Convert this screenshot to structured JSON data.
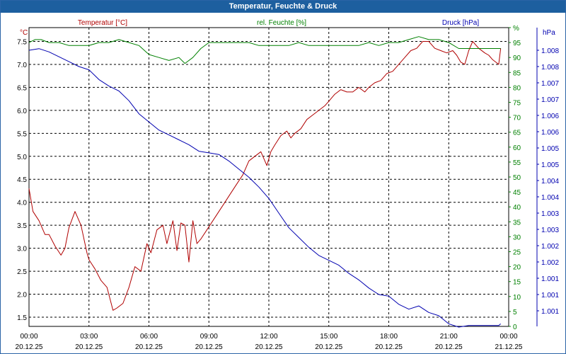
{
  "chart_data": {
    "type": "line",
    "title": "Temperatur, Feuchte & Druck",
    "x_tick_labels": [
      {
        "time": "00:00",
        "date": "20.12.25"
      },
      {
        "time": "03:00",
        "date": "20.12.25"
      },
      {
        "time": "06:00",
        "date": "20.12.25"
      },
      {
        "time": "09:00",
        "date": "20.12.25"
      },
      {
        "time": "12:00",
        "date": "20.12.25"
      },
      {
        "time": "15:00",
        "date": "20.12.25"
      },
      {
        "time": "18:00",
        "date": "20.12.25"
      },
      {
        "time": "21:00",
        "date": "20.12.25"
      },
      {
        "time": "00:00",
        "date": "21.12.25"
      }
    ],
    "xlim_hours": [
      0,
      24
    ],
    "axes": {
      "temperature": {
        "unit_label": "°C",
        "series_label": "Temperatur [°C]",
        "ylim": [
          1.3,
          7.8
        ],
        "ticks": [
          "1.5",
          "2.0",
          "2.5",
          "3.0",
          "3.5",
          "4.0",
          "4.5",
          "5.0",
          "5.5",
          "6.0",
          "6.5",
          "7.0",
          "7.5"
        ],
        "color": "#b00000"
      },
      "humidity": {
        "unit_label": "%",
        "series_label": "rel. Feuchte [%]",
        "ylim": [
          0,
          100
        ],
        "ticks": [
          "0",
          "5",
          "10",
          "15",
          "20",
          "25",
          "30",
          "35",
          "40",
          "45",
          "50",
          "55",
          "60",
          "65",
          "70",
          "75",
          "80",
          "85",
          "90",
          "95",
          "%"
        ],
        "color": "#008000"
      },
      "pressure": {
        "unit_label": "hPa",
        "series_label": "Druck [hPa]",
        "ticks": [
          "1.001",
          "1.001",
          "1.001",
          "1.002",
          "1.002",
          "1.003",
          "1.003",
          "1.004",
          "1.004",
          "1.005",
          "1.005",
          "1.006",
          "1.006",
          "1.007",
          "1.007",
          "1.008",
          "1.008"
        ],
        "color": "#0000b0",
        "note": "values expressed in tick index units (0 = bottom tick, 16 = top tick)"
      }
    },
    "series": [
      {
        "name": "Temperatur [°C]",
        "axis": "temperature",
        "color": "#b00000",
        "x": [
          0,
          0.2,
          0.5,
          0.8,
          1.0,
          1.3,
          1.6,
          1.8,
          2.0,
          2.3,
          2.6,
          2.9,
          3.0,
          3.3,
          3.6,
          3.9,
          4.2,
          4.4,
          4.7,
          5.0,
          5.3,
          5.6,
          5.9,
          6.1,
          6.4,
          6.7,
          6.9,
          7.2,
          7.4,
          7.6,
          7.8,
          8.0,
          8.2,
          8.4,
          8.6,
          8.9,
          9.2,
          9.5,
          9.8,
          10.1,
          10.4,
          10.7,
          11.0,
          11.3,
          11.6,
          11.9,
          12.1,
          12.3,
          12.6,
          12.9,
          13.1,
          13.3,
          13.6,
          13.9,
          14.2,
          14.5,
          14.8,
          15.0,
          15.3,
          15.6,
          15.9,
          16.2,
          16.5,
          16.8,
          17.0,
          17.3,
          17.6,
          17.9,
          18.2,
          18.5,
          18.8,
          19.1,
          19.4,
          19.7,
          20.0,
          20.3,
          20.6,
          20.9,
          21.2,
          21.4,
          21.6,
          21.8,
          22.0,
          22.2,
          22.5,
          22.8,
          23.0,
          23.2,
          23.5,
          23.6
        ],
        "values": [
          4.3,
          3.8,
          3.6,
          3.3,
          3.3,
          3.05,
          2.85,
          3.0,
          3.45,
          3.8,
          3.5,
          2.9,
          2.75,
          2.55,
          2.3,
          2.15,
          1.65,
          1.7,
          1.8,
          2.15,
          2.6,
          2.5,
          3.1,
          2.9,
          3.4,
          3.5,
          3.1,
          3.6,
          2.95,
          3.55,
          3.5,
          2.7,
          3.6,
          3.1,
          3.2,
          3.4,
          3.6,
          3.8,
          4.0,
          4.2,
          4.4,
          4.6,
          4.9,
          5.0,
          5.1,
          4.8,
          5.1,
          5.25,
          5.45,
          5.55,
          5.4,
          5.5,
          5.6,
          5.8,
          5.9,
          6.0,
          6.1,
          6.2,
          6.35,
          6.45,
          6.4,
          6.4,
          6.5,
          6.4,
          6.5,
          6.6,
          6.65,
          6.8,
          6.85,
          7.0,
          7.15,
          7.3,
          7.35,
          7.5,
          7.5,
          7.35,
          7.3,
          7.25,
          7.3,
          7.2,
          7.05,
          7.0,
          7.3,
          7.5,
          7.35,
          7.25,
          7.2,
          7.1,
          7.0,
          7.35
        ]
      },
      {
        "name": "rel. Feuchte [%]",
        "axis": "humidity",
        "color": "#008000",
        "x": [
          0,
          0.3,
          0.6,
          1.0,
          1.5,
          2.0,
          2.5,
          3.0,
          3.5,
          4.0,
          4.5,
          5.0,
          5.5,
          6.0,
          6.5,
          7.0,
          7.5,
          7.8,
          8.2,
          8.6,
          9.0,
          9.5,
          10.0,
          10.5,
          11.0,
          11.5,
          12.0,
          12.5,
          13.0,
          13.5,
          14.0,
          14.5,
          15.0,
          15.5,
          16.0,
          16.5,
          17.0,
          17.5,
          18.0,
          18.5,
          19.0,
          19.5,
          20.0,
          20.5,
          21.0,
          21.5,
          22.0,
          22.5,
          23.0,
          23.5,
          23.6
        ],
        "values": [
          95,
          96,
          96,
          95,
          95,
          94,
          94,
          94,
          95,
          95,
          96,
          95,
          94,
          91,
          90,
          89,
          90,
          88,
          90,
          93,
          95,
          95,
          95,
          95,
          95,
          94,
          94,
          94,
          94,
          95,
          94,
          94,
          94,
          94,
          94,
          94,
          95,
          94,
          95,
          95,
          96,
          97,
          96,
          96,
          95,
          93,
          93,
          93,
          93,
          93,
          93
        ]
      },
      {
        "name": "Druck [hPa]",
        "axis": "pressure",
        "color": "#0000b0",
        "x": [
          0,
          0.5,
          1.0,
          1.5,
          2.0,
          2.5,
          3.0,
          3.5,
          4.0,
          4.5,
          5.0,
          5.5,
          6.0,
          6.5,
          7.0,
          7.5,
          8.0,
          8.5,
          9.0,
          9.5,
          10.0,
          10.5,
          11.0,
          11.5,
          12.0,
          12.5,
          13.0,
          13.5,
          14.0,
          14.5,
          15.0,
          15.5,
          16.0,
          16.5,
          17.0,
          17.5,
          18.0,
          18.5,
          19.0,
          19.5,
          20.0,
          20.5,
          21.0,
          21.5,
          22.0,
          22.5,
          23.0,
          23.5,
          23.6
        ],
        "values": [
          16.0,
          16.1,
          15.9,
          15.6,
          15.3,
          15.0,
          14.8,
          14.2,
          13.8,
          13.5,
          12.9,
          12.1,
          11.6,
          11.1,
          10.8,
          10.5,
          10.2,
          9.8,
          9.7,
          9.6,
          9.2,
          8.7,
          8.2,
          7.6,
          6.9,
          6.0,
          5.1,
          4.5,
          3.9,
          3.4,
          3.1,
          2.8,
          2.3,
          1.9,
          1.4,
          1.0,
          0.9,
          0.4,
          0.1,
          0.3,
          -0.1,
          -0.3,
          -0.8,
          -1.0,
          -0.9,
          -0.9,
          -0.9,
          -0.9,
          -0.8
        ]
      }
    ]
  }
}
